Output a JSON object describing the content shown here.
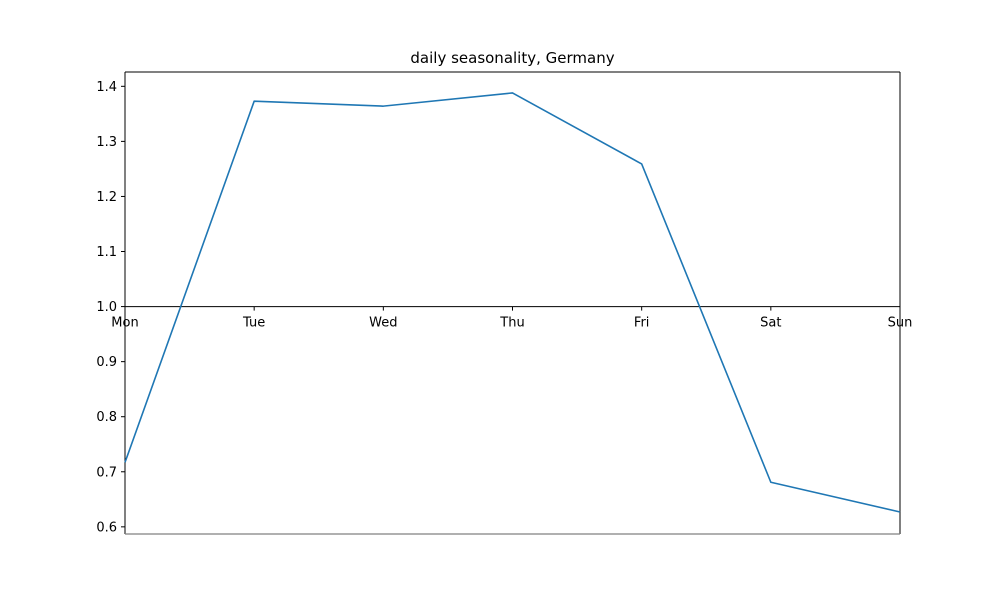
{
  "chart_data": {
    "type": "line",
    "title": "daily seasonality, Germany",
    "xlabel": "",
    "ylabel": "",
    "categories": [
      "Mon",
      "Tue",
      "Wed",
      "Thu",
      "Fri",
      "Sat",
      "Sun"
    ],
    "series": [
      {
        "values": [
          0.717,
          1.373,
          1.364,
          1.388,
          1.259,
          0.681,
          0.627
        ],
        "color": "#1f77b4"
      }
    ],
    "yticks": [
      "0.6",
      "0.7",
      "0.8",
      "0.9",
      "1.0",
      "1.1",
      "1.2",
      "1.3",
      "1.4"
    ],
    "ylim": [
      0.587,
      1.426
    ],
    "x_axis_crosses_at": 1.0,
    "grid": false,
    "legend": "none"
  }
}
